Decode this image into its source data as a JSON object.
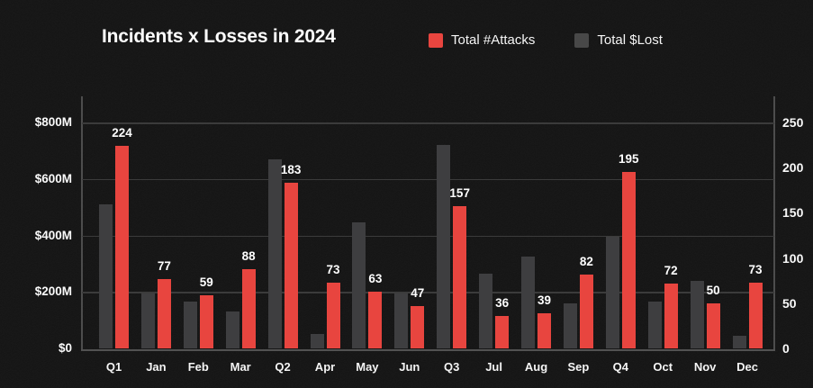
{
  "header": {
    "title": "Incidents x Losses in 2024"
  },
  "legend": {
    "items": [
      {
        "label": "Total #Attacks",
        "color": "#e8453f"
      },
      {
        "label": "Total $Lost",
        "color": "#484848"
      }
    ]
  },
  "chart_data": {
    "type": "bar",
    "title": "Incidents x Losses in 2024",
    "categories": [
      "Q1",
      "Jan",
      "Feb",
      "Mar",
      "Q2",
      "Apr",
      "May",
      "Jun",
      "Q3",
      "Jul",
      "Aug",
      "Sep",
      "Q4",
      "Oct",
      "Nov",
      "Dec"
    ],
    "series": [
      {
        "name": "Total $Lost",
        "axis": "left",
        "unit": "$M",
        "color": "#3e3e40",
        "values": [
          510,
          195,
          165,
          130,
          670,
          50,
          445,
          195,
          720,
          265,
          325,
          160,
          395,
          165,
          240,
          45
        ]
      },
      {
        "name": "Total #Attacks",
        "axis": "right",
        "color": "#e8453f",
        "data_labels": true,
        "values": [
          224,
          77,
          59,
          88,
          183,
          73,
          63,
          47,
          157,
          36,
          39,
          82,
          195,
          72,
          50,
          73
        ]
      }
    ],
    "left_axis": {
      "ticks": [
        "$0",
        "$200M",
        "$400M",
        "$600M",
        "$800M"
      ],
      "tick_values": [
        0,
        200,
        400,
        600,
        800
      ],
      "range": [
        0,
        800
      ]
    },
    "right_axis": {
      "ticks": [
        "0",
        "50",
        "100",
        "150",
        "200",
        "250"
      ],
      "tick_values": [
        0,
        50,
        100,
        150,
        200,
        250
      ],
      "range": [
        0,
        250
      ]
    },
    "grid": true,
    "legend_position": "top",
    "background_color": "#131313"
  }
}
